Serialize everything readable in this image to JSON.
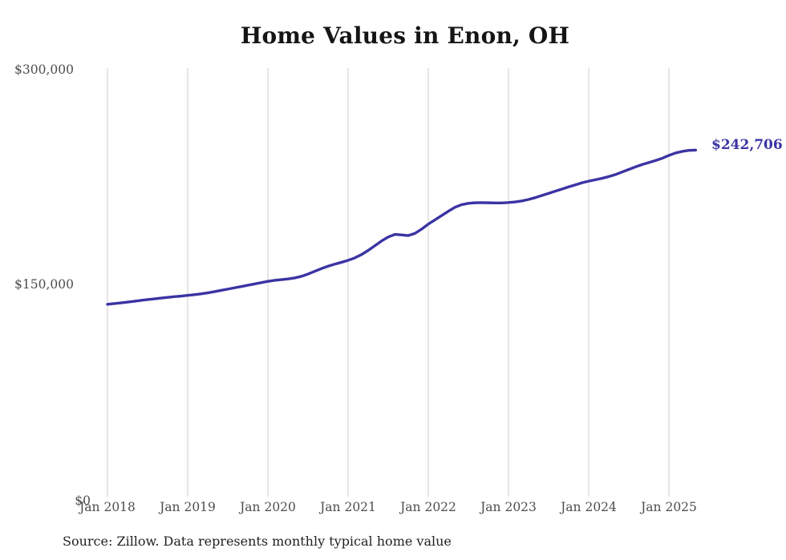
{
  "title": "Home Values in Enon, OH",
  "source_note": "Source: Zillow. Data represents monthly typical home value",
  "end_label": "$242,706",
  "colors": {
    "line": "#3a34a3",
    "grid": "#cccccc",
    "axis_text": "#4d4d4d",
    "title_text": "#151515",
    "source_text": "#222222",
    "background": "#ffffff"
  },
  "y_axis": {
    "tick_labels": [
      "$0",
      "$150,000",
      "$300,000"
    ]
  },
  "x_axis": {
    "tick_labels": [
      "Jan 2018",
      "Jan 2019",
      "Jan 2020",
      "Jan 2021",
      "Jan 2022",
      "Jan 2023",
      "Jan 2024",
      "Jan 2025"
    ]
  },
  "chart_data": {
    "type": "line",
    "title": "Home Values in Enon, OH",
    "ylabel": "",
    "xlabel": "",
    "unit": "USD",
    "ylim": [
      0,
      300000
    ],
    "y_ticks": [
      0,
      150000,
      300000
    ],
    "y_tick_labels": [
      "$0",
      "$150,000",
      "$300,000"
    ],
    "x_tick_labels": [
      "Jan 2018",
      "Jan 2019",
      "Jan 2020",
      "Jan 2021",
      "Jan 2022",
      "Jan 2023",
      "Jan 2024",
      "Jan 2025"
    ],
    "x_start_month": "2018-01",
    "x_end_month": "2025-05",
    "grid": "vertical-only",
    "legend": "none",
    "final_value": 242706,
    "end_label": "$242,706",
    "series": [
      {
        "name": "Typical home value",
        "monthly_values": [
          135000,
          135500,
          136000,
          136500,
          137100,
          137700,
          138300,
          138800,
          139300,
          139800,
          140300,
          140700,
          141200,
          141700,
          142300,
          143000,
          143800,
          144700,
          145600,
          146500,
          147400,
          148300,
          149200,
          150100,
          151000,
          151700,
          152200,
          152700,
          153400,
          154500,
          156100,
          158000,
          159900,
          161600,
          163000,
          164300,
          165700,
          167400,
          169700,
          172600,
          175900,
          179200,
          182000,
          183800,
          183500,
          183000,
          184500,
          187500,
          191000,
          194000,
          197000,
          200000,
          202800,
          204600,
          205500,
          205900,
          206000,
          205900,
          205800,
          205800,
          206100,
          206500,
          207200,
          208200,
          209500,
          211000,
          212500,
          214000,
          215500,
          217000,
          218400,
          219900,
          221000,
          222000,
          223000,
          224200,
          225600,
          227400,
          229200,
          231000,
          232600,
          234000,
          235400,
          237000,
          239000,
          240700,
          241800,
          242500,
          242706
        ]
      }
    ]
  }
}
